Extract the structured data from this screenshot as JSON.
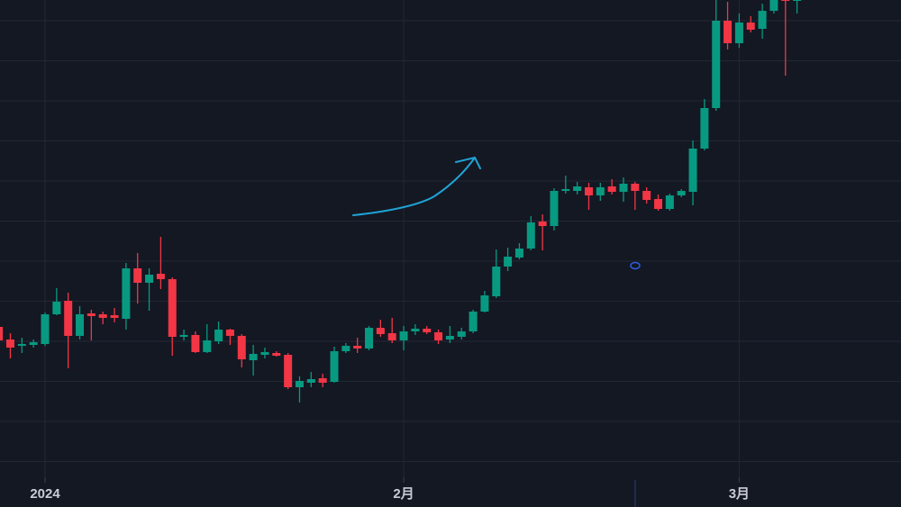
{
  "chart_data": {
    "type": "candlestick",
    "categories": [
      null,
      null,
      null,
      null,
      "2024",
      null,
      null,
      null,
      null,
      null,
      null,
      null,
      null,
      null,
      null,
      null,
      null,
      null,
      null,
      null,
      null,
      null,
      null,
      null,
      null,
      null,
      null,
      null,
      null,
      null,
      null,
      null,
      null,
      null,
      null,
      "2月",
      null,
      null,
      null,
      null,
      null,
      null,
      null,
      null,
      null,
      null,
      null,
      null,
      null,
      null,
      null,
      null,
      null,
      null,
      null,
      null,
      null,
      null,
      null,
      null,
      null,
      null,
      null,
      null,
      "3月",
      null,
      null,
      null,
      null,
      null
    ],
    "open": [
      200,
      186,
      179,
      180,
      181,
      214,
      229,
      190,
      215,
      214,
      213,
      209,
      265,
      249,
      259,
      253,
      189,
      191,
      172,
      184,
      197,
      190,
      163,
      169,
      171,
      169,
      133,
      138,
      143,
      139,
      173,
      179,
      176,
      199,
      193,
      185,
      195,
      198,
      194,
      186,
      189,
      195,
      217,
      234,
      267,
      277,
      287,
      317,
      312,
      351,
      351,
      355,
      346,
      356,
      350,
      359,
      351,
      342,
      331,
      346,
      350,
      398,
      443,
      540,
      515,
      538,
      531,
      551,
      566,
      562
    ],
    "high": [
      203,
      193,
      188,
      186,
      216,
      243,
      238,
      223,
      219,
      217,
      221,
      271,
      282,
      265,
      300,
      255,
      197,
      195,
      203,
      206,
      198,
      192,
      180,
      177,
      173,
      171,
      145,
      150,
      148,
      178,
      182,
      188,
      201,
      208,
      210,
      201,
      203,
      201,
      197,
      201,
      199,
      219,
      240,
      286,
      288,
      293,
      323,
      325,
      354,
      368,
      361,
      360,
      360,
      364,
      366,
      361,
      355,
      347,
      348,
      353,
      407,
      453,
      563,
      561,
      548,
      545,
      559,
      570,
      572,
      570
    ],
    "low": [
      178,
      165,
      171,
      177,
      179,
      213,
      154,
      186,
      185,
      203,
      205,
      197,
      226,
      218,
      242,
      168,
      185,
      171,
      171,
      181,
      180,
      155,
      146,
      165,
      167,
      131,
      116,
      133,
      133,
      138,
      171,
      171,
      174,
      189,
      182,
      174,
      191,
      192,
      181,
      182,
      186,
      193,
      216,
      232,
      262,
      275,
      285,
      285,
      307,
      348,
      347,
      330,
      340,
      347,
      339,
      330,
      337,
      329,
      329,
      344,
      335,
      396,
      440,
      508,
      510,
      527,
      520,
      548,
      479,
      548
    ],
    "close": [
      185,
      177,
      181,
      183,
      214,
      228,
      190,
      214,
      212,
      210,
      210,
      265,
      249,
      258,
      253,
      189,
      191,
      172,
      185,
      197,
      190,
      164,
      170,
      172,
      168,
      133,
      140,
      142,
      138,
      173,
      179,
      176,
      199,
      192,
      185,
      195,
      198,
      194,
      185,
      190,
      195,
      217,
      235,
      267,
      278,
      287,
      316,
      312,
      351,
      353,
      356,
      346,
      355,
      350,
      359,
      351,
      341,
      331,
      346,
      351,
      398,
      443,
      540,
      515,
      538,
      530,
      551,
      566,
      562,
      566
    ],
    "up_color": "#089981",
    "down_color": "#f23645",
    "ylim": [
      0,
      563
    ],
    "grid": true
  }
}
